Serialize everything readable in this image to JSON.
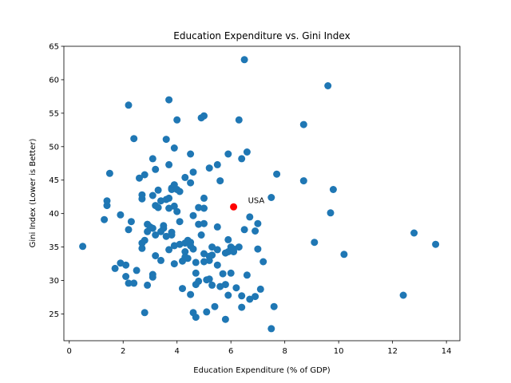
{
  "chart_data": {
    "type": "scatter",
    "title": "Education Expenditure vs. Gini Index",
    "xlabel": "Education Expenditure (% of GDP)",
    "ylabel": "Gini Index (Lower is Better)",
    "xlim": [
      -0.2,
      14.5
    ],
    "ylim": [
      21,
      65
    ],
    "xticks": [
      0,
      2,
      4,
      6,
      8,
      10,
      12,
      14
    ],
    "yticks": [
      25,
      30,
      35,
      40,
      45,
      50,
      55,
      60,
      65
    ],
    "grid": false,
    "point_color": "#1f77b4",
    "highlight_color": "#ff0000",
    "highlight": {
      "label": "USA",
      "x": 6.1,
      "y": 41.0
    },
    "points": [
      [
        0.5,
        35.1
      ],
      [
        1.3,
        39.1
      ],
      [
        1.4,
        41.2
      ],
      [
        1.4,
        41.9
      ],
      [
        1.5,
        46.0
      ],
      [
        1.7,
        31.8
      ],
      [
        1.9,
        32.6
      ],
      [
        1.9,
        39.8
      ],
      [
        2.1,
        30.6
      ],
      [
        2.1,
        32.3
      ],
      [
        2.2,
        37.6
      ],
      [
        2.2,
        29.6
      ],
      [
        2.2,
        56.2
      ],
      [
        2.3,
        38.8
      ],
      [
        2.4,
        29.6
      ],
      [
        2.4,
        51.2
      ],
      [
        2.5,
        31.5
      ],
      [
        2.6,
        45.3
      ],
      [
        2.7,
        34.8
      ],
      [
        2.7,
        35.6
      ],
      [
        2.7,
        42.2
      ],
      [
        2.7,
        42.8
      ],
      [
        2.8,
        45.8
      ],
      [
        2.8,
        36.0
      ],
      [
        2.8,
        25.2
      ],
      [
        2.9,
        29.3
      ],
      [
        2.9,
        38.4
      ],
      [
        2.9,
        37.3
      ],
      [
        3.0,
        38.0
      ],
      [
        3.1,
        48.2
      ],
      [
        3.1,
        42.7
      ],
      [
        3.1,
        30.9
      ],
      [
        3.1,
        30.5
      ],
      [
        3.1,
        37.8
      ],
      [
        3.2,
        46.6
      ],
      [
        3.2,
        41.2
      ],
      [
        3.2,
        36.8
      ],
      [
        3.2,
        33.7
      ],
      [
        3.3,
        40.9
      ],
      [
        3.3,
        43.5
      ],
      [
        3.4,
        41.9
      ],
      [
        3.4,
        37.3
      ],
      [
        3.4,
        33.0
      ],
      [
        3.5,
        37.8
      ],
      [
        3.5,
        38.2
      ],
      [
        3.6,
        51.1
      ],
      [
        3.6,
        42.1
      ],
      [
        3.6,
        36.6
      ],
      [
        3.7,
        34.6
      ],
      [
        3.7,
        47.3
      ],
      [
        3.7,
        42.3
      ],
      [
        3.7,
        40.8
      ],
      [
        3.7,
        57.0
      ],
      [
        3.8,
        43.8
      ],
      [
        3.8,
        43.6
      ],
      [
        3.8,
        36.8
      ],
      [
        3.8,
        37.2
      ],
      [
        3.9,
        49.8
      ],
      [
        3.9,
        44.3
      ],
      [
        3.9,
        41.1
      ],
      [
        3.9,
        32.5
      ],
      [
        3.9,
        35.2
      ],
      [
        4.0,
        43.6
      ],
      [
        4.0,
        40.3
      ],
      [
        4.0,
        54.0
      ],
      [
        4.1,
        35.4
      ],
      [
        4.1,
        38.8
      ],
      [
        4.1,
        43.3
      ],
      [
        4.2,
        32.9
      ],
      [
        4.2,
        28.8
      ],
      [
        4.3,
        45.4
      ],
      [
        4.3,
        35.6
      ],
      [
        4.3,
        34.3
      ],
      [
        4.3,
        33.5
      ],
      [
        4.4,
        33.3
      ],
      [
        4.4,
        36.0
      ],
      [
        4.5,
        35.7
      ],
      [
        4.5,
        48.9
      ],
      [
        4.5,
        44.6
      ],
      [
        4.5,
        27.9
      ],
      [
        4.5,
        35.2
      ],
      [
        4.6,
        46.2
      ],
      [
        4.6,
        39.7
      ],
      [
        4.6,
        34.7
      ],
      [
        4.6,
        25.2
      ],
      [
        4.7,
        32.7
      ],
      [
        4.7,
        31.1
      ],
      [
        4.7,
        24.5
      ],
      [
        4.7,
        29.4
      ],
      [
        4.8,
        40.9
      ],
      [
        4.8,
        38.4
      ],
      [
        4.8,
        29.9
      ],
      [
        4.9,
        54.3
      ],
      [
        4.9,
        36.8
      ],
      [
        5.0,
        54.6
      ],
      [
        5.0,
        42.3
      ],
      [
        5.0,
        40.8
      ],
      [
        5.0,
        38.5
      ],
      [
        5.0,
        34.0
      ],
      [
        5.0,
        32.8
      ],
      [
        5.1,
        30.1
      ],
      [
        5.1,
        25.3
      ],
      [
        5.2,
        46.8
      ],
      [
        5.2,
        33.6
      ],
      [
        5.2,
        30.2
      ],
      [
        5.2,
        33.0
      ],
      [
        5.3,
        35.0
      ],
      [
        5.3,
        33.8
      ],
      [
        5.3,
        29.3
      ],
      [
        5.4,
        26.1
      ],
      [
        5.5,
        47.3
      ],
      [
        5.5,
        38.0
      ],
      [
        5.5,
        34.6
      ],
      [
        5.5,
        32.3
      ],
      [
        5.6,
        44.9
      ],
      [
        5.6,
        29.1
      ],
      [
        5.7,
        31.0
      ],
      [
        5.8,
        24.2
      ],
      [
        5.8,
        29.4
      ],
      [
        5.8,
        34.1
      ],
      [
        5.9,
        48.9
      ],
      [
        5.9,
        36.1
      ],
      [
        5.9,
        34.3
      ],
      [
        5.9,
        27.8
      ],
      [
        6.0,
        35.0
      ],
      [
        6.0,
        31.1
      ],
      [
        6.1,
        34.7
      ],
      [
        6.1,
        34.3
      ],
      [
        6.2,
        28.9
      ],
      [
        6.3,
        54.0
      ],
      [
        6.3,
        35.0
      ],
      [
        6.4,
        48.2
      ],
      [
        6.4,
        26.0
      ],
      [
        6.4,
        27.7
      ],
      [
        6.5,
        63.0
      ],
      [
        6.5,
        37.6
      ],
      [
        6.6,
        30.8
      ],
      [
        6.6,
        49.2
      ],
      [
        6.7,
        39.5
      ],
      [
        6.7,
        27.2
      ],
      [
        6.9,
        37.4
      ],
      [
        6.9,
        27.6
      ],
      [
        7.0,
        34.7
      ],
      [
        7.0,
        38.5
      ],
      [
        7.1,
        28.7
      ],
      [
        7.2,
        32.8
      ],
      [
        7.5,
        42.4
      ],
      [
        7.5,
        22.8
      ],
      [
        7.6,
        26.1
      ],
      [
        7.7,
        45.9
      ],
      [
        8.7,
        53.3
      ],
      [
        8.7,
        44.9
      ],
      [
        9.1,
        35.7
      ],
      [
        9.6,
        59.1
      ],
      [
        9.7,
        40.1
      ],
      [
        9.8,
        43.6
      ],
      [
        10.2,
        33.9
      ],
      [
        12.4,
        27.8
      ],
      [
        12.8,
        37.1
      ],
      [
        13.6,
        35.4
      ]
    ]
  }
}
